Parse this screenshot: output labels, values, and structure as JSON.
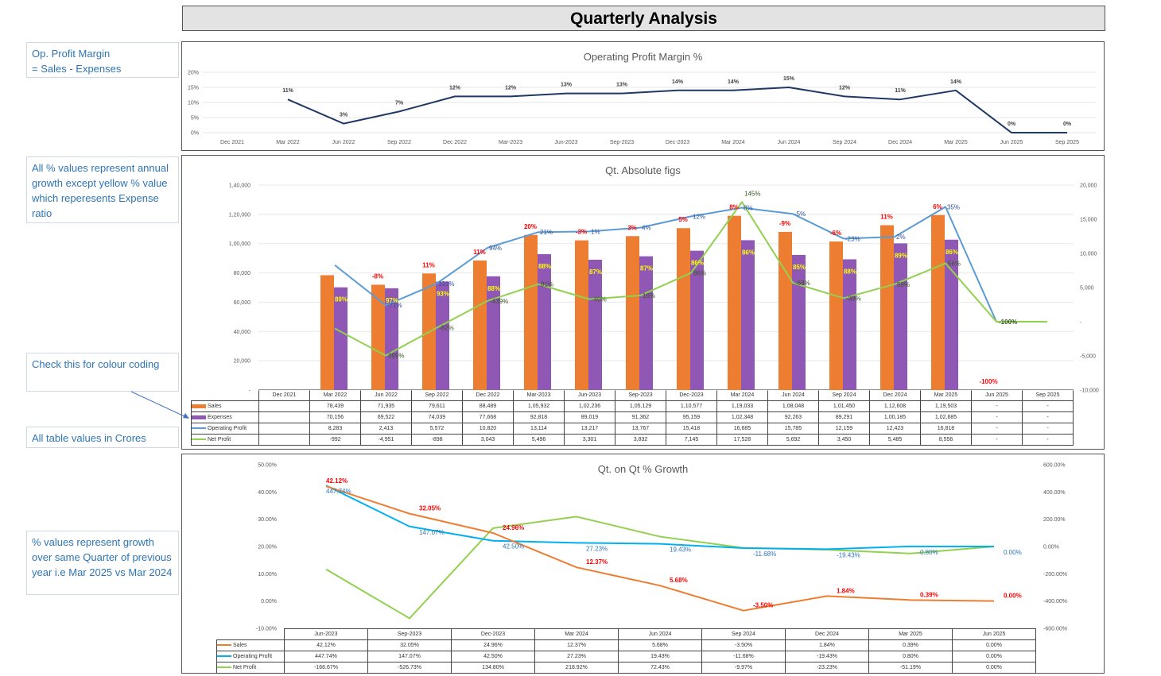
{
  "title": "Quarterly Analysis",
  "notes": [
    "Op. Profit Margin\n=  Sales - Expenses",
    "All % values represent annual growth except yellow % value which reperesents Expense ratio",
    "Check this for colour coding",
    "All table values in Crores",
    "% values represent  growth over same Quarter of previous year i.e Mar 2025 vs Mar 2024"
  ],
  "colors": {
    "sales": "#ed7d31",
    "expenses": "#9058b4",
    "op": "#5b9bd5",
    "np": "#92d050",
    "opm": "#1f3864",
    "op_growth3": "#00b0f0",
    "note": "#2e75b6"
  },
  "chart_data": [
    {
      "type": "line",
      "title": "Operating Profit Margin %",
      "categories": [
        "Dec 2021",
        "Mar 2022",
        "Jun 2022",
        "Sep 2022",
        "Dec 2022",
        "Mar-2023",
        "Jun-2023",
        "Sep-2023",
        "Dec-2023",
        "Mar 2024",
        "Jun 2024",
        "Sep 2024",
        "Dec 2024",
        "Mar 2025",
        "Jun 2025",
        "Sep 2025"
      ],
      "values": [
        null,
        11,
        3,
        7,
        12,
        12,
        13,
        13,
        14,
        14,
        15,
        12,
        11,
        14,
        0,
        0
      ],
      "ylim": [
        0,
        20
      ],
      "yticks": [
        "0%",
        "5%",
        "10%",
        "15%",
        "20%"
      ],
      "grid": true
    },
    {
      "type": "bar+line",
      "title": "Qt. Absolute figs",
      "categories": [
        "Dec 2021",
        "Mar 2022",
        "Jun 2022",
        "Sep 2022",
        "Dec 2022",
        "Mar-2023",
        "Jun-2023",
        "Sep-2023",
        "Dec-2023",
        "Mar 2024",
        "Jun 2024",
        "Sep 2024",
        "Dec 2024",
        "Mar 2025",
        "Jun 2025",
        "Sep 2025"
      ],
      "series": [
        {
          "name": "Sales",
          "axis": "left",
          "kind": "bar",
          "values": [
            null,
            "78,439",
            "71,935",
            "79,611",
            "88,489",
            "1,05,932",
            "1,02,236",
            "1,05,129",
            "1,10,577",
            "1,19,033",
            "1,08,048",
            "1,01,450",
            "1,12,608",
            "1,19,503",
            "-",
            "-"
          ],
          "labels": [
            "",
            "",
            "-8%",
            "11%",
            "11%",
            "20%",
            "-3%",
            "3%",
            "5%",
            "8%",
            "-9%",
            "-6%",
            "11%",
            "6%",
            "-100%",
            ""
          ]
        },
        {
          "name": "Expenses",
          "axis": "left",
          "kind": "bar",
          "values": [
            null,
            "70,156",
            "69,522",
            "74,039",
            "77,668",
            "92,818",
            "89,019",
            "91,362",
            "95,159",
            "1,02,348",
            "92,263",
            "89,291",
            "1,00,185",
            "1,02,685",
            "-",
            "-"
          ],
          "labels": [
            "",
            "89%",
            "97%",
            "93%",
            "88%",
            "88%",
            "87%",
            "87%",
            "86%",
            "86%",
            "85%",
            "88%",
            "89%",
            "86%",
            "",
            ""
          ]
        },
        {
          "name": "Operating Profit",
          "axis": "right",
          "kind": "line",
          "values": [
            null,
            "8,283",
            "2,413",
            "5,572",
            "10,820",
            "13,114",
            "13,217",
            "13,767",
            "15,418",
            "16,685",
            "15,785",
            "12,159",
            "12,423",
            "16,818",
            "-",
            "-"
          ],
          "labels": [
            "",
            "",
            "-71%",
            "131%",
            "94%",
            "21%",
            "1%",
            "4%",
            "12%",
            "8%",
            "-5%",
            "-23%",
            "2%",
            "35%",
            "",
            ""
          ]
        },
        {
          "name": "Net Profit",
          "axis": "right",
          "kind": "line",
          "values": [
            null,
            "-992",
            "-4,951",
            "-898",
            "3,043",
            "5,496",
            "3,301",
            "3,832",
            "7,145",
            "17,528",
            "5,692",
            "3,450",
            "5,485",
            "8,556",
            "-",
            "-"
          ],
          "labels": [
            "",
            "",
            "399%",
            "-82%",
            "-439%",
            "81%",
            "-40%",
            "16%",
            "86%",
            "145%",
            "-68%",
            "-39%",
            "59%",
            "56%",
            "-100%",
            ""
          ]
        }
      ],
      "ylim_left": [
        0,
        140000
      ],
      "yticks_left": [
        "-",
        "20,000",
        "40,000",
        "60,000",
        "80,000",
        "1,00,000",
        "1,20,000",
        "1,40,000"
      ],
      "ylim_right": [
        -10000,
        20000
      ],
      "yticks_right": [
        "-10,000",
        "-5,000",
        "-",
        "5,000",
        "10,000",
        "15,000",
        "20,000"
      ],
      "grid": true
    },
    {
      "type": "line",
      "title": "Qt. on Qt % Growth",
      "categories": [
        "Jun-2023",
        "Sep-2023",
        "Dec-2023",
        "Mar 2024",
        "Jun 2024",
        "Sep 2024",
        "Dec 2024",
        "Mar 2025",
        "Jun 2025"
      ],
      "series": [
        {
          "name": "Sales",
          "axis": "left",
          "values": [
            "42.12%",
            "32.05%",
            "24.96%",
            "12.37%",
            "5.68%",
            "-3.50%",
            "1.84%",
            "0.39%",
            "0.00%"
          ]
        },
        {
          "name": "Operating Profit",
          "axis": "right",
          "values": [
            "447.74%",
            "147.07%",
            "42.50%",
            "27.23%",
            "19.43%",
            "-11.68%",
            "-19.43%",
            "0.80%",
            "0.00%"
          ]
        },
        {
          "name": "Net Profit",
          "axis": "right",
          "values": [
            "-166.67%",
            "-526.73%",
            "134.80%",
            "218.92%",
            "72.43%",
            "-9.97%",
            "-23.23%",
            "-51.19%",
            "0.00%"
          ]
        }
      ],
      "ylim_left": [
        -10,
        50
      ],
      "yticks_left": [
        "-10.00%",
        "0.00%",
        "10.00%",
        "20.00%",
        "30.00%",
        "40.00%",
        "50.00%"
      ],
      "ylim_right": [
        -600,
        600
      ],
      "yticks_right": [
        "-600.00%",
        "-400.00%",
        "-200.00%",
        "0.00%",
        "200.00%",
        "400.00%",
        "600.00%"
      ],
      "grid": false
    }
  ]
}
